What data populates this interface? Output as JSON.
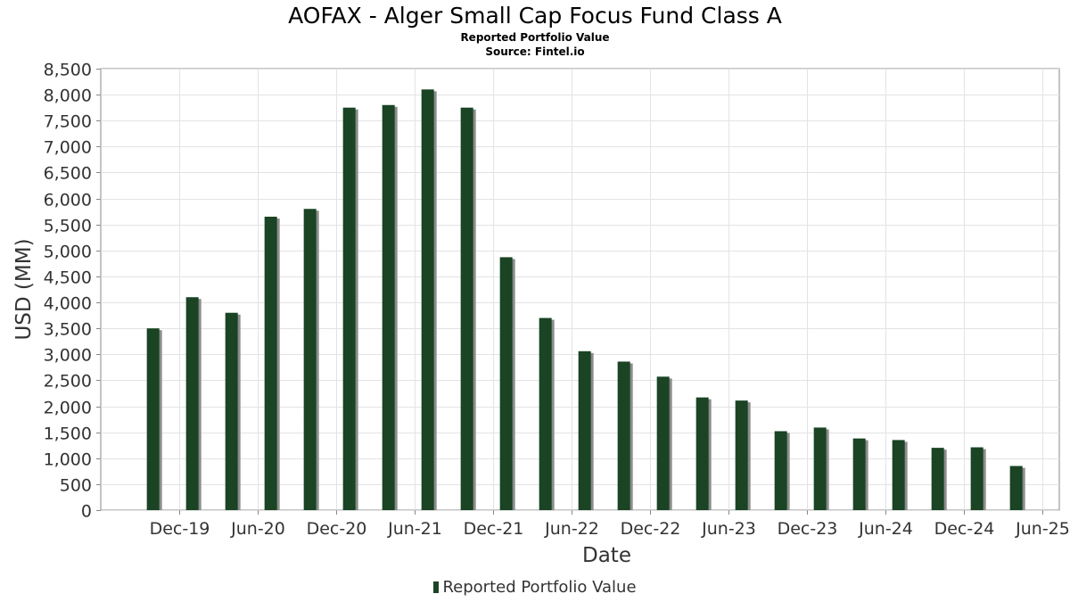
{
  "chart_data": {
    "type": "bar",
    "title": "AOFAX - Alger Small Cap Focus Fund Class A",
    "subtitles": [
      "Reported Portfolio Value",
      "Source: Fintel.io"
    ],
    "xlabel": "Date",
    "ylabel": "USD (MM)",
    "ylim": [
      0,
      8500
    ],
    "ytick_labels": [
      "0",
      "500",
      "1,000",
      "1,500",
      "2,000",
      "2,500",
      "3,000",
      "3,500",
      "4,000",
      "4,500",
      "5,000",
      "5,500",
      "6,000",
      "6,500",
      "7,000",
      "7,500",
      "8,000",
      "8,500"
    ],
    "xtick_labels": [
      "Dec-19",
      "Jun-20",
      "Dec-20",
      "Jun-21",
      "Dec-21",
      "Jun-22",
      "Dec-22",
      "Jun-23",
      "Dec-23",
      "Jun-24",
      "Dec-24",
      "Jun-25"
    ],
    "x_range": [
      "2019-06",
      "2025-06"
    ],
    "grid": true,
    "legend_position": "bottom",
    "colors": {
      "bar": "#1a4424",
      "bar_shadow": "#8c8c8c",
      "grid": "#e3e3e3",
      "axis": "#888888"
    },
    "series": [
      {
        "name": "Reported Portfolio Value",
        "x": [
          "2019-10",
          "2020-01",
          "2020-04",
          "2020-07",
          "2020-10",
          "2021-01",
          "2021-04",
          "2021-07",
          "2021-10",
          "2022-01",
          "2022-04",
          "2022-07",
          "2022-10",
          "2023-01",
          "2023-04",
          "2023-07",
          "2023-10",
          "2024-01",
          "2024-04",
          "2024-07",
          "2024-10",
          "2025-01",
          "2025-04"
        ],
        "values": [
          3500,
          4100,
          3800,
          5650,
          5800,
          7750,
          7800,
          8100,
          7750,
          4870,
          3700,
          3060,
          2860,
          2570,
          2170,
          2110,
          1520,
          1590,
          1380,
          1350,
          1200,
          1210,
          850
        ]
      }
    ]
  }
}
